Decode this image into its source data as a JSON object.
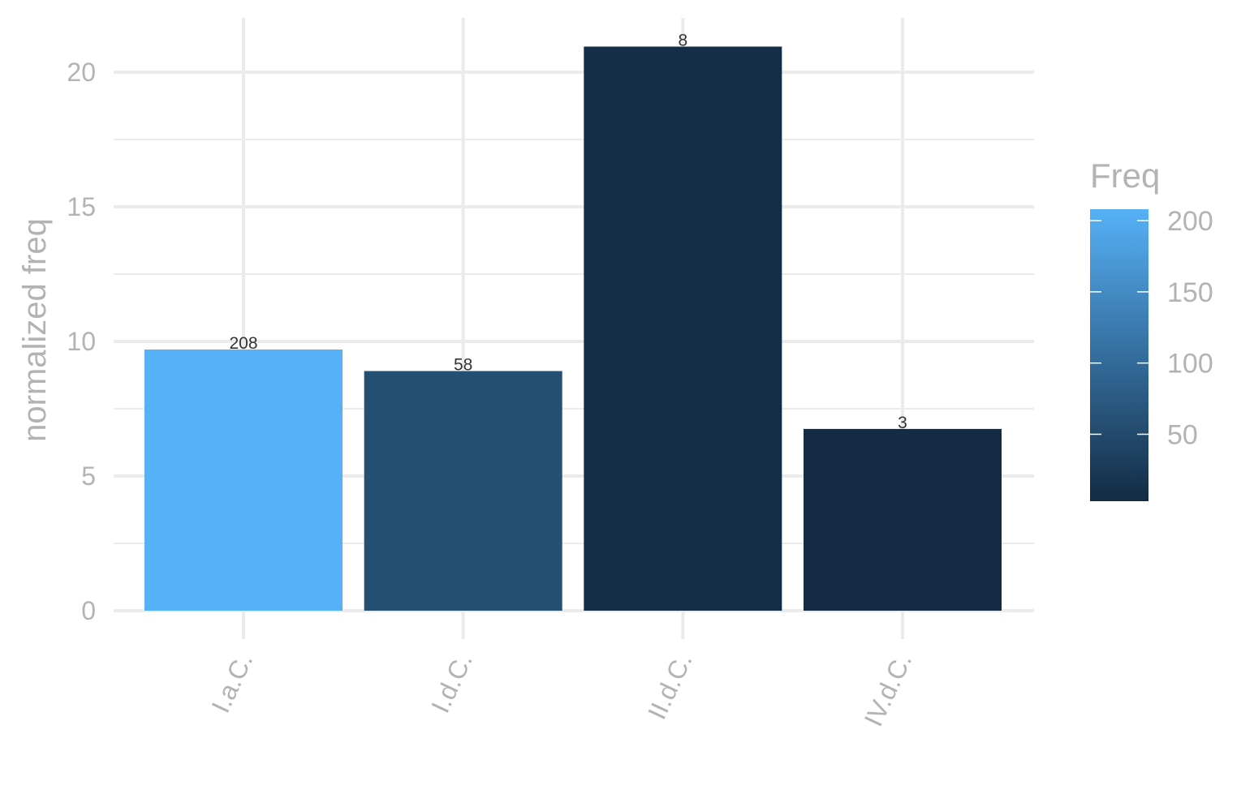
{
  "chart_data": {
    "type": "bar",
    "ylabel": "normalized freq",
    "xlabel": "",
    "categories": [
      "I.a.C.",
      "I.d.C.",
      "II.d.C.",
      "IV.d.C."
    ],
    "values": [
      9.7,
      8.9,
      20.95,
      6.75
    ],
    "labels": [
      "208",
      "58",
      "8",
      "3"
    ],
    "fill_values": [
      208,
      58,
      8,
      3
    ],
    "ylim": [
      0,
      22
    ],
    "yticks": [
      0,
      5,
      10,
      15,
      20
    ],
    "grid": true,
    "legend": {
      "title": "Freq",
      "placement": "right",
      "ticks": [
        50,
        100,
        150,
        200
      ],
      "range": [
        3,
        208
      ],
      "color_low": "#132B43",
      "color_high": "#56B1F7"
    }
  }
}
